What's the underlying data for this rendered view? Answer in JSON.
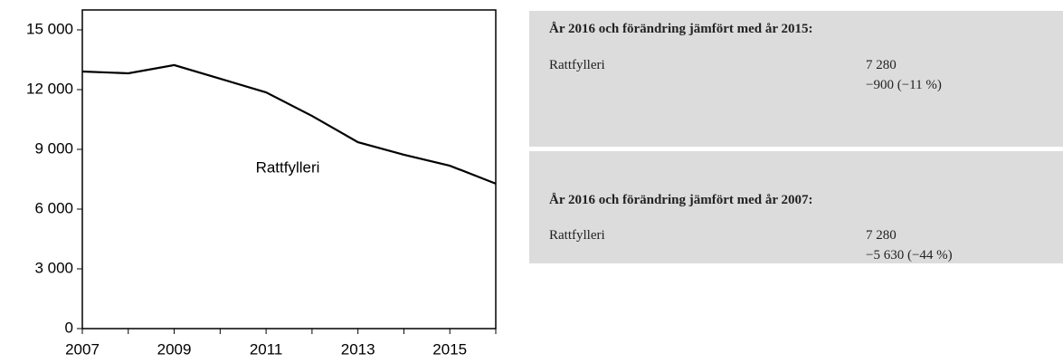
{
  "chart_data": {
    "type": "line",
    "x": [
      2007,
      2008,
      2009,
      2010,
      2011,
      2012,
      2013,
      2014,
      2015,
      2016
    ],
    "series": [
      {
        "name": "Rattfylleri",
        "color": "#000000",
        "values": [
          12910,
          12820,
          13230,
          12550,
          11860,
          10680,
          9360,
          8730,
          8180,
          7280
        ]
      }
    ],
    "xlim": [
      2007,
      2016
    ],
    "xticks": [
      2007,
      2009,
      2011,
      2013,
      2015
    ],
    "xminor_ticks": [
      2008,
      2010,
      2012,
      2014,
      2016
    ],
    "ylim": [
      0,
      16000
    ],
    "yticks": [
      0,
      {
        "value": 3000,
        "label": "3 000"
      },
      {
        "value": 6000,
        "label": "6 000"
      },
      {
        "value": 9000,
        "label": "9 000"
      },
      {
        "value": 12000,
        "label": "12 000"
      },
      {
        "value": 15000,
        "label": "15 000"
      }
    ],
    "grid": false
  },
  "panels": [
    {
      "title": "År 2016 och förändring jämfört med år 2015:",
      "rows": [
        {
          "label": "Rattfylleri",
          "value": "7 280",
          "change": "−900 (−11 %)"
        }
      ]
    },
    {
      "title": "År 2016 och förändring jämfört med år 2007:",
      "rows": [
        {
          "label": "Rattfylleri",
          "value": "7 280",
          "change": "−5 630 (−44 %)"
        }
      ]
    }
  ]
}
